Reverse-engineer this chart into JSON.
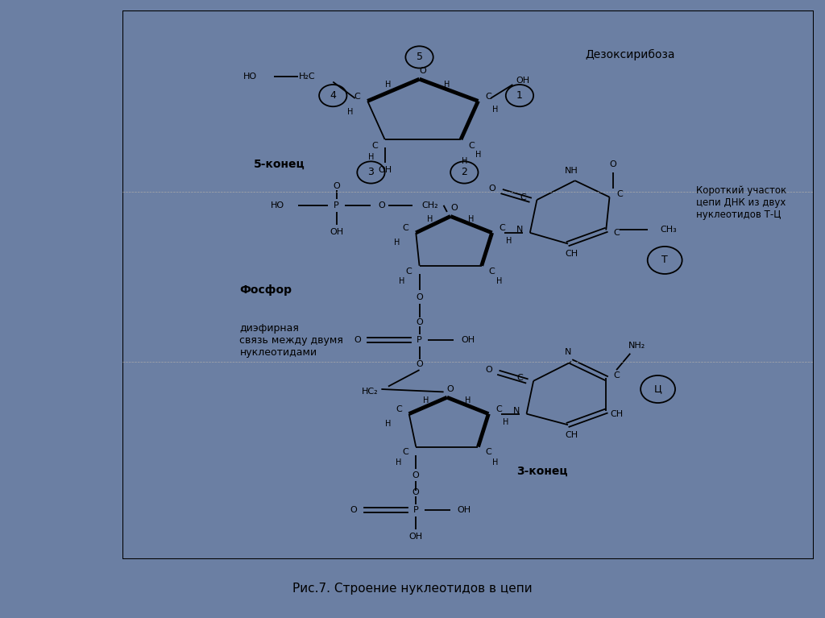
{
  "bg_color": "#ffffff",
  "outer_bg": "#6b7fa3",
  "caption": "Рис.7. Строение нуклеотидов в цепи",
  "label_dezoksirriboza": "Дезоксирибоза",
  "label_5end": "5-конец",
  "label_3end": "3-конец",
  "label_fosfor_bold": "Фосфор",
  "label_fosfor_rest": "диэфирная\nсвязь между двумя\nнуклеотидами",
  "label_korotkiy": "Короткий участок\nцепи ДНК из двух\nнуклеотидов Т-Ц"
}
